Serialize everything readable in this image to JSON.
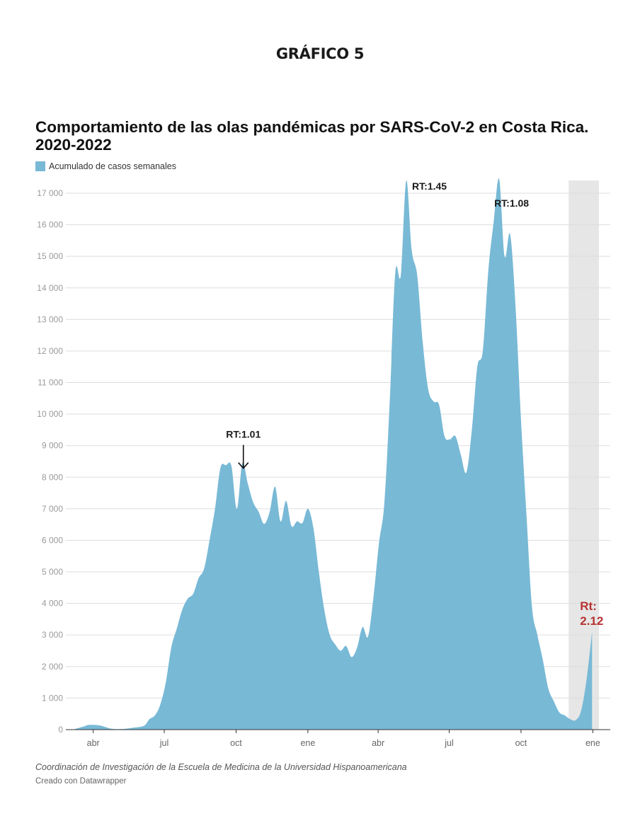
{
  "page": {
    "heading": "GRÁFICO 5",
    "source": "Coordinación de Investigación de la Escuela de Medicina de la Universidad Hispanoamericana",
    "credit": "Creado con Datawrapper"
  },
  "chart_data": {
    "type": "area",
    "title": "Comportamiento de las olas pandémicas por SARS-CoV-2 en Costa Rica. 2020-2022",
    "xlabel": "",
    "ylabel": "",
    "legend": {
      "position": "top-left",
      "entries": [
        "Acumulado de casos semanales"
      ]
    },
    "grid": true,
    "colors": {
      "area": "#78b9d6",
      "highlight": "#e6e6e6",
      "axis": "#333333",
      "grid": "#dddddd",
      "rt_red": "#b83232"
    },
    "ylim": [
      0,
      17000
    ],
    "yticks": [
      0,
      1000,
      2000,
      3000,
      4000,
      5000,
      6000,
      7000,
      8000,
      9000,
      10000,
      11000,
      12000,
      13000,
      14000,
      15000,
      16000,
      17000
    ],
    "ytick_labels": [
      "0",
      "1 000",
      "2 000",
      "3 000",
      "4 000",
      "5 000",
      "6 000",
      "7 000",
      "8 000",
      "9 000",
      "10 000",
      "11 000",
      "12 000",
      "13 000",
      "14 000",
      "15 000",
      "16 000",
      "17 000"
    ],
    "xlim": [
      "2020-03-06",
      "2022-01-07"
    ],
    "xticks": [
      {
        "date": "2020-04-01",
        "label": "abr"
      },
      {
        "date": "2020-07-01",
        "label": "jul"
      },
      {
        "date": "2020-10-01",
        "label": "oct"
      },
      {
        "date": "2021-01-01",
        "label": "ene"
      },
      {
        "date": "2021-04-01",
        "label": "abr"
      },
      {
        "date": "2021-07-01",
        "label": "jul"
      },
      {
        "date": "2021-10-01",
        "label": "oct"
      },
      {
        "date": "2022-01-01",
        "label": "ene"
      }
    ],
    "highlight_range": [
      "2021-12-01",
      "2022-01-07"
    ],
    "series": [
      {
        "name": "Acumulado de casos semanales",
        "points": [
          [
            "2020-03-06",
            0
          ],
          [
            "2020-03-20",
            100
          ],
          [
            "2020-03-27",
            150
          ],
          [
            "2020-04-10",
            130
          ],
          [
            "2020-04-24",
            30
          ],
          [
            "2020-05-08",
            20
          ],
          [
            "2020-05-22",
            60
          ],
          [
            "2020-06-05",
            120
          ],
          [
            "2020-06-12",
            330
          ],
          [
            "2020-06-19",
            450
          ],
          [
            "2020-06-26",
            800
          ],
          [
            "2020-07-03",
            1500
          ],
          [
            "2020-07-10",
            2600
          ],
          [
            "2020-07-17",
            3200
          ],
          [
            "2020-07-24",
            3800
          ],
          [
            "2020-07-31",
            4150
          ],
          [
            "2020-08-07",
            4300
          ],
          [
            "2020-08-14",
            4800
          ],
          [
            "2020-08-21",
            5100
          ],
          [
            "2020-08-28",
            6000
          ],
          [
            "2020-09-04",
            7000
          ],
          [
            "2020-09-11",
            8300
          ],
          [
            "2020-09-18",
            8380
          ],
          [
            "2020-09-25",
            8360
          ],
          [
            "2020-10-02",
            7000
          ],
          [
            "2020-10-09",
            8450
          ],
          [
            "2020-10-16",
            7800
          ],
          [
            "2020-10-23",
            7200
          ],
          [
            "2020-10-30",
            6900
          ],
          [
            "2020-11-06",
            6520
          ],
          [
            "2020-11-13",
            6900
          ],
          [
            "2020-11-20",
            7700
          ],
          [
            "2020-11-27",
            6600
          ],
          [
            "2020-12-04",
            7250
          ],
          [
            "2020-12-11",
            6450
          ],
          [
            "2020-12-18",
            6600
          ],
          [
            "2020-12-25",
            6550
          ],
          [
            "2021-01-01",
            7000
          ],
          [
            "2021-01-08",
            6400
          ],
          [
            "2021-01-15",
            5000
          ],
          [
            "2021-01-22",
            3800
          ],
          [
            "2021-01-29",
            3000
          ],
          [
            "2021-02-05",
            2700
          ],
          [
            "2021-02-12",
            2500
          ],
          [
            "2021-02-19",
            2650
          ],
          [
            "2021-02-26",
            2300
          ],
          [
            "2021-03-05",
            2600
          ],
          [
            "2021-03-12",
            3250
          ],
          [
            "2021-03-19",
            2950
          ],
          [
            "2021-03-26",
            4200
          ],
          [
            "2021-04-02",
            5900
          ],
          [
            "2021-04-09",
            7200
          ],
          [
            "2021-04-16",
            10500
          ],
          [
            "2021-04-23",
            14500
          ],
          [
            "2021-04-30",
            14400
          ],
          [
            "2021-05-07",
            17400
          ],
          [
            "2021-05-14",
            15200
          ],
          [
            "2021-05-21",
            14400
          ],
          [
            "2021-05-28",
            12300
          ],
          [
            "2021-06-04",
            10800
          ],
          [
            "2021-06-11",
            10400
          ],
          [
            "2021-06-18",
            10300
          ],
          [
            "2021-06-25",
            9300
          ],
          [
            "2021-07-02",
            9200
          ],
          [
            "2021-07-09",
            9300
          ],
          [
            "2021-07-16",
            8700
          ],
          [
            "2021-07-23",
            8150
          ],
          [
            "2021-07-30",
            9500
          ],
          [
            "2021-08-06",
            11500
          ],
          [
            "2021-08-13",
            12000
          ],
          [
            "2021-08-20",
            14500
          ],
          [
            "2021-08-27",
            16100
          ],
          [
            "2021-09-03",
            17450
          ],
          [
            "2021-09-10",
            15000
          ],
          [
            "2021-09-17",
            15700
          ],
          [
            "2021-09-24",
            13400
          ],
          [
            "2021-10-01",
            9800
          ],
          [
            "2021-10-08",
            6800
          ],
          [
            "2021-10-15",
            3900
          ],
          [
            "2021-10-22",
            3000
          ],
          [
            "2021-10-29",
            2200
          ],
          [
            "2021-11-05",
            1300
          ],
          [
            "2021-11-12",
            900
          ],
          [
            "2021-11-19",
            550
          ],
          [
            "2021-11-26",
            450
          ],
          [
            "2021-12-03",
            330
          ],
          [
            "2021-12-10",
            300
          ],
          [
            "2021-12-17",
            600
          ],
          [
            "2021-12-24",
            1600
          ],
          [
            "2021-12-31",
            3100
          ]
        ]
      }
    ],
    "annotations": [
      {
        "text": "RT:1.01",
        "date": "2020-09-24",
        "value": 8350,
        "arrow": true
      },
      {
        "text": "RT:1.45",
        "date": "2021-05-09",
        "value": 17400,
        "arrow": false
      },
      {
        "text": "RT:1.08",
        "date": "2021-09-03",
        "value": 17450,
        "arrow": false
      },
      {
        "text": "Rt:",
        "text2": "2.12",
        "date": "2021-12-31",
        "value": 3100,
        "arrow": false,
        "color": "red"
      }
    ]
  }
}
